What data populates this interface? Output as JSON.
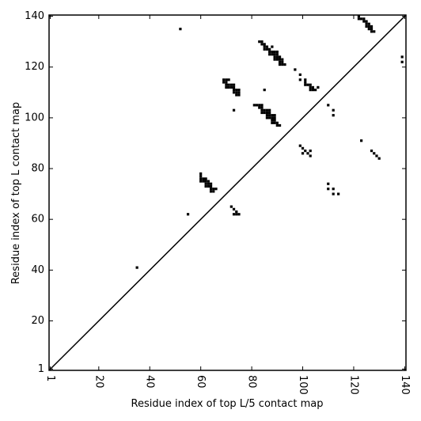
{
  "chart_data": {
    "type": "scatter",
    "xlabel": "Residue index of top L/5 contact map",
    "ylabel": "Residue index of top L contact map",
    "xlim": [
      0.5,
      140.5
    ],
    "ylim": [
      0.5,
      140.5
    ],
    "xticks": [
      1,
      20,
      40,
      60,
      80,
      100,
      120,
      140
    ],
    "yticks": [
      1,
      20,
      40,
      60,
      80,
      100,
      120,
      140
    ],
    "color": "#000000",
    "diagonal": {
      "x": [
        1,
        140
      ],
      "y": [
        1,
        140
      ]
    },
    "x": [
      52,
      35,
      55,
      60,
      60,
      60,
      61,
      62,
      60,
      61,
      62,
      63,
      62,
      63,
      64,
      62,
      63,
      64,
      64,
      65,
      66,
      64,
      65,
      72,
      73,
      74,
      73,
      74,
      75,
      69,
      70,
      71,
      69,
      70,
      70,
      71,
      72,
      73,
      70,
      71,
      72,
      73,
      73,
      74,
      73,
      74,
      75,
      74,
      75,
      75,
      73,
      85,
      81,
      82,
      83,
      84,
      83,
      84,
      84,
      85,
      86,
      87,
      84,
      85,
      86,
      87,
      86,
      87,
      88,
      89,
      86,
      87,
      88,
      89,
      88,
      89,
      88,
      89,
      90,
      90,
      91,
      83,
      84,
      84,
      85,
      85,
      86,
      87,
      85,
      86,
      88,
      87,
      88,
      89,
      90,
      87,
      88,
      89,
      90,
      89,
      90,
      91,
      89,
      90,
      91,
      92,
      91,
      92,
      91,
      92,
      93,
      97,
      99,
      99,
      101,
      101,
      101,
      102,
      103,
      103,
      104,
      103,
      104,
      105,
      106,
      110,
      112,
      112,
      99,
      100,
      101,
      100,
      102,
      103,
      103,
      110,
      110,
      112,
      112,
      114,
      123,
      127,
      128,
      129,
      130,
      122,
      122,
      123,
      124,
      124,
      125,
      125,
      126,
      125,
      126,
      127,
      126,
      127,
      127,
      128,
      139,
      139
    ],
    "y": [
      135,
      41,
      62,
      78,
      77,
      76,
      76,
      76,
      75,
      75,
      75,
      75,
      74,
      74,
      74,
      73,
      73,
      73,
      72,
      72,
      72,
      71,
      71,
      65,
      64,
      63,
      62,
      62,
      62,
      115,
      115,
      115,
      114,
      114,
      113,
      113,
      113,
      113,
      112,
      112,
      112,
      112,
      111,
      111,
      110,
      110,
      110,
      109,
      109,
      111,
      103,
      111,
      105,
      105,
      105,
      105,
      104,
      104,
      103,
      103,
      103,
      103,
      102,
      102,
      102,
      102,
      101,
      101,
      101,
      101,
      100,
      100,
      100,
      100,
      99,
      99,
      98,
      98,
      98,
      97,
      97,
      130,
      130,
      129,
      129,
      128,
      128,
      127,
      127,
      127,
      128,
      126,
      126,
      126,
      126,
      125,
      125,
      125,
      125,
      124,
      124,
      124,
      123,
      123,
      123,
      123,
      122,
      122,
      121,
      121,
      121,
      119,
      117,
      115,
      115,
      114,
      113,
      113,
      113,
      112,
      112,
      111,
      111,
      111,
      112,
      105,
      103,
      101,
      89,
      88,
      87,
      86,
      86,
      87,
      85,
      74,
      72,
      72,
      70,
      70,
      91,
      87,
      86,
      85,
      84,
      140,
      139,
      139,
      139,
      138,
      138,
      137,
      137,
      136,
      136,
      136,
      135,
      135,
      134,
      134,
      124,
      122
    ]
  }
}
